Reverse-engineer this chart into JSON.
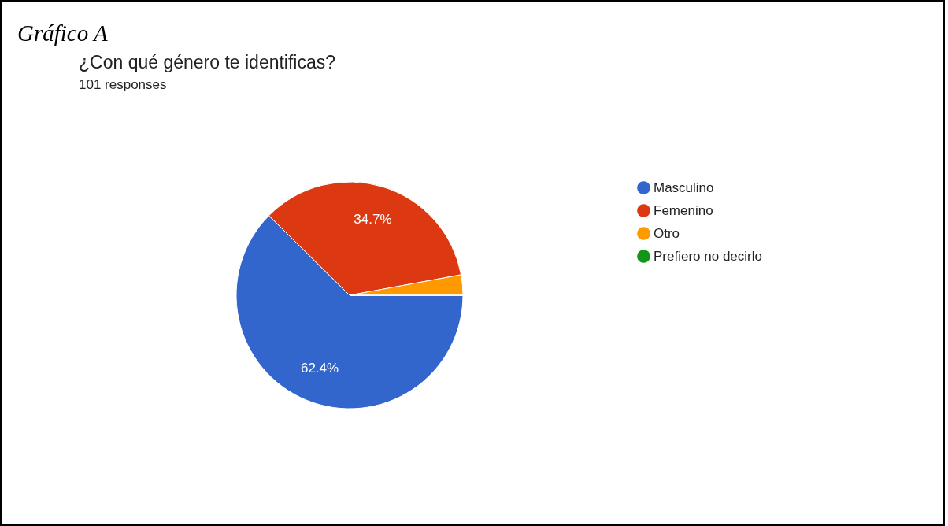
{
  "chart_data": {
    "type": "pie",
    "title": "¿Con qué género te identificas?",
    "subtitle": "101 responses",
    "annotations": [
      "Gráfico A"
    ],
    "categories": [
      "Masculino",
      "Femenino",
      "Otro",
      "Prefiero no decirlo"
    ],
    "values": [
      62.4,
      34.7,
      2.9,
      0
    ],
    "colors": [
      "#3366cc",
      "#dc3912",
      "#ff9900",
      "#109618"
    ],
    "value_labels": [
      "62.4%",
      "34.7%",
      null,
      null
    ],
    "legend": "top right"
  }
}
